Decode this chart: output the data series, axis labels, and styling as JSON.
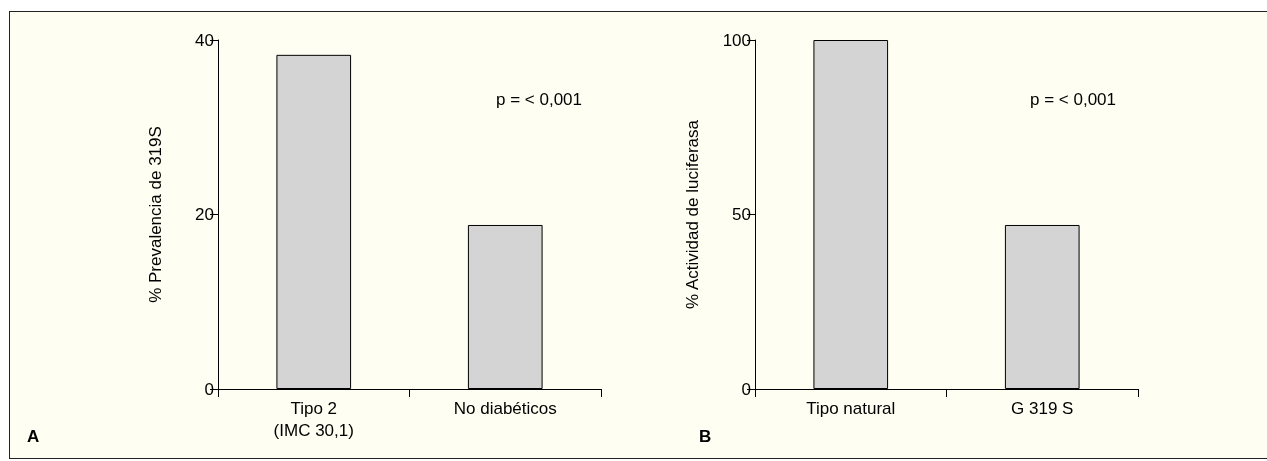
{
  "chart_data": [
    {
      "type": "bar",
      "ylabel": "% Prevalencia de 319S",
      "categories": [
        "Tipo 2\n(IMC 30,1)",
        "No diabéticos"
      ],
      "values": [
        38.3,
        18.8
      ],
      "color": "#d4d4d4",
      "ylim": [
        0,
        40
      ],
      "yticks": [
        0,
        20,
        40
      ],
      "grid": false,
      "annotations": [
        "p = < 0,001",
        "A"
      ]
    },
    {
      "type": "bar",
      "ylabel": "% Actividad de luciferasa",
      "categories": [
        "Tipo natural",
        "G 319 S"
      ],
      "values": [
        100,
        47
      ],
      "color": "#d4d4d4",
      "ylim": [
        0,
        100
      ],
      "yticks": [
        0,
        50,
        100
      ],
      "grid": false,
      "annotations": [
        "p = < 0,001",
        "B"
      ]
    }
  ]
}
